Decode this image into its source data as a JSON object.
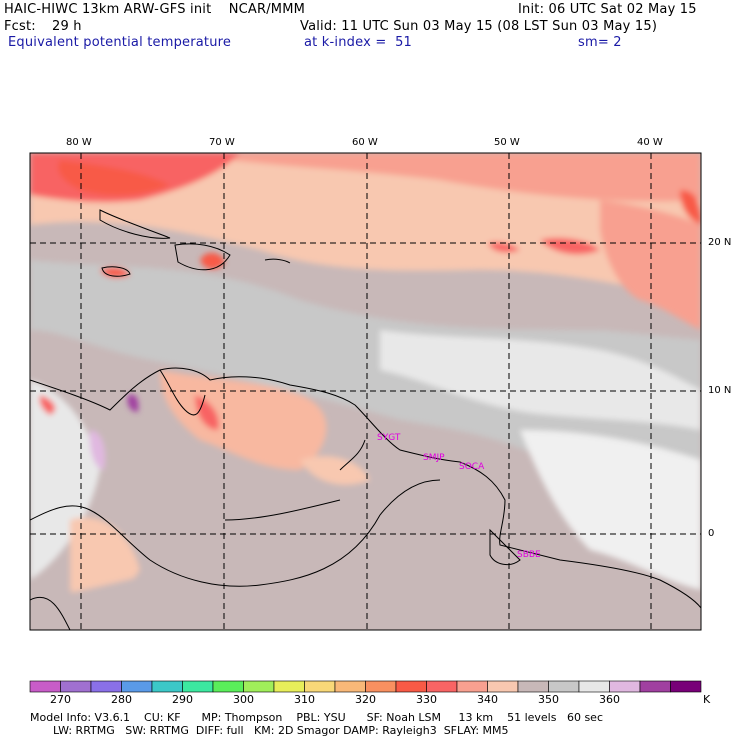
{
  "header": {
    "model_line": "HAIC-HIWC 13km ARW-GFS init    NCAR/MMM",
    "init": "Init: 06 UTC Sat 02 May 15",
    "fcst_label": "Fcst:",
    "fcst_value": "29 h",
    "valid": "Valid: 11 UTC Sun 03 May 15 (08 LST Sun 03 May 15)",
    "field": "Equivalent potential temperature",
    "level": "at k-index =  51",
    "smoothing": "sm= 2"
  },
  "map": {
    "lon_labels": [
      "80 W",
      "70 W",
      "60 W",
      "50 W",
      "40 W"
    ],
    "lat_labels": [
      "20 N",
      "10 N",
      "0"
    ],
    "stations": [
      "SYGT",
      "SMJP",
      "SOCA",
      "SBBE"
    ],
    "colors": {
      "station": "#e000e0",
      "grid": "#000000"
    }
  },
  "colorbar": {
    "colors": [
      "#c85cc8",
      "#a070d0",
      "#8a70e8",
      "#5a9ae8",
      "#3cc8c8",
      "#3ce8a0",
      "#5aee5a",
      "#a0ee5a",
      "#e8ee5a",
      "#f8d878",
      "#f8b878",
      "#f89060",
      "#f85a46",
      "#f86464",
      "#f8a090",
      "#f8c8b0",
      "#c8b8b8",
      "#c8c8c8",
      "#e8e8e8",
      "#e0b8e0",
      "#a040a0",
      "#780078"
    ],
    "labels": [
      "270",
      "280",
      "290",
      "300",
      "310",
      "320",
      "330",
      "340",
      "350",
      "360"
    ],
    "unit": "K"
  },
  "footer": {
    "line1": "Model Info: V3.6.1    CU: KF      MP: Thompson    PBL: YSU      SF: Noah LSM     13 km    51 levels   60 sec",
    "line2": "LW: RRTMG   SW: RRTMG  DIFF: full   KM: 2D Smagor DAMP: Rayleigh3  SFLAY: MM5"
  }
}
